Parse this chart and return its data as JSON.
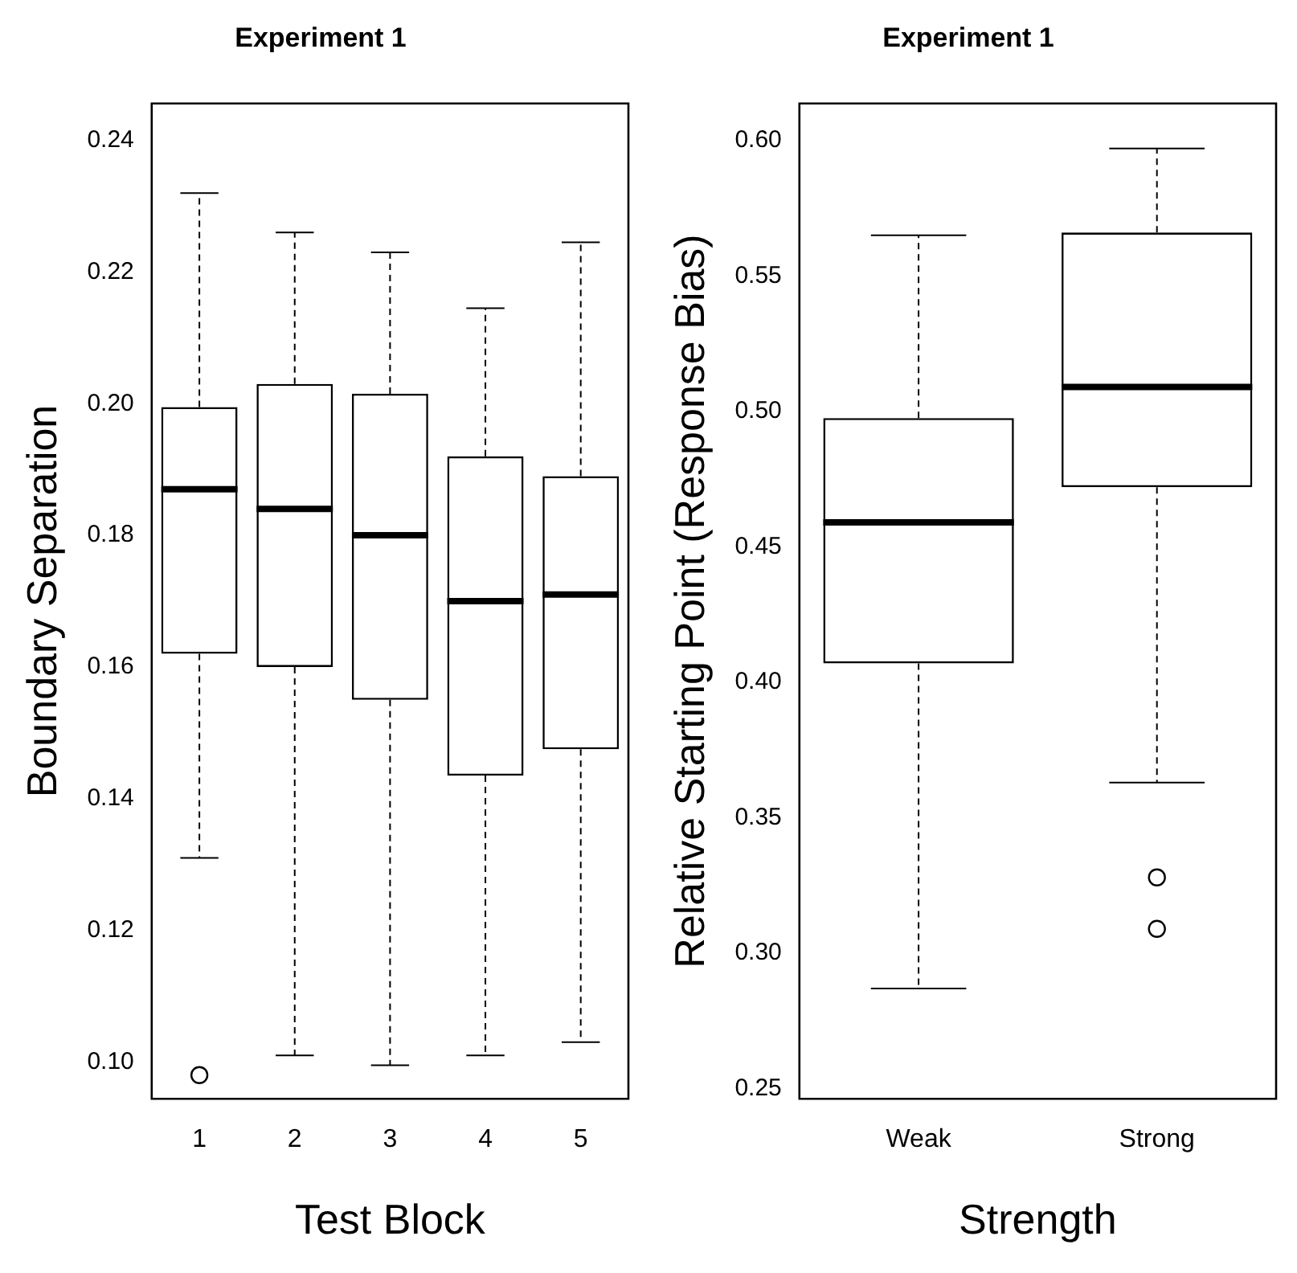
{
  "chart_data": [
    {
      "type": "box",
      "title": "Experiment 1",
      "xlabel": "Test Block",
      "ylabel": "Boundary Separation",
      "categories": [
        "1",
        "2",
        "3",
        "4",
        "5"
      ],
      "boxes": [
        {
          "low": 0.131,
          "q1": 0.162,
          "median": 0.187,
          "q3": 0.1995,
          "high": 0.232,
          "outliers": [
            0.098
          ]
        },
        {
          "low": 0.101,
          "q1": 0.16,
          "median": 0.184,
          "q3": 0.203,
          "high": 0.226
        },
        {
          "low": 0.0995,
          "q1": 0.155,
          "median": 0.18,
          "q3": 0.2015,
          "high": 0.223
        },
        {
          "low": 0.101,
          "q1": 0.1435,
          "median": 0.17,
          "q3": 0.192,
          "high": 0.2145
        },
        {
          "low": 0.103,
          "q1": 0.1475,
          "median": 0.171,
          "q3": 0.189,
          "high": 0.2245
        }
      ],
      "ylim": [
        0.0944,
        0.2456
      ],
      "yticks": [
        {
          "value": 0.1,
          "label": "0.10"
        },
        {
          "value": 0.12,
          "label": "0.12"
        },
        {
          "value": 0.14,
          "label": "0.14"
        },
        {
          "value": 0.16,
          "label": "0.16"
        },
        {
          "value": 0.18,
          "label": "0.18"
        },
        {
          "value": 0.2,
          "label": "0.20"
        },
        {
          "value": 0.22,
          "label": "0.22"
        },
        {
          "value": 0.24,
          "label": "0.24"
        }
      ],
      "grid": false
    },
    {
      "type": "box",
      "title": "Experiment 1",
      "xlabel": "Strength",
      "ylabel": "Relative Starting Point (Response Bias)",
      "categories": [
        "Weak",
        "Strong"
      ],
      "boxes": [
        {
          "low": 0.287,
          "q1": 0.407,
          "median": 0.459,
          "q3": 0.4975,
          "high": 0.565
        },
        {
          "low": 0.363,
          "q1": 0.472,
          "median": 0.509,
          "q3": 0.566,
          "high": 0.597,
          "outliers": [
            0.328,
            0.309
          ]
        }
      ],
      "ylim": [
        0.2463,
        0.6136
      ],
      "yticks": [
        {
          "value": 0.25,
          "label": "0.25"
        },
        {
          "value": 0.3,
          "label": "0.30"
        },
        {
          "value": 0.35,
          "label": "0.35"
        },
        {
          "value": 0.4,
          "label": "0.40"
        },
        {
          "value": 0.45,
          "label": "0.45"
        },
        {
          "value": 0.5,
          "label": "0.50"
        },
        {
          "value": 0.55,
          "label": "0.55"
        },
        {
          "value": 0.6,
          "label": "0.60"
        }
      ],
      "grid": false
    }
  ]
}
